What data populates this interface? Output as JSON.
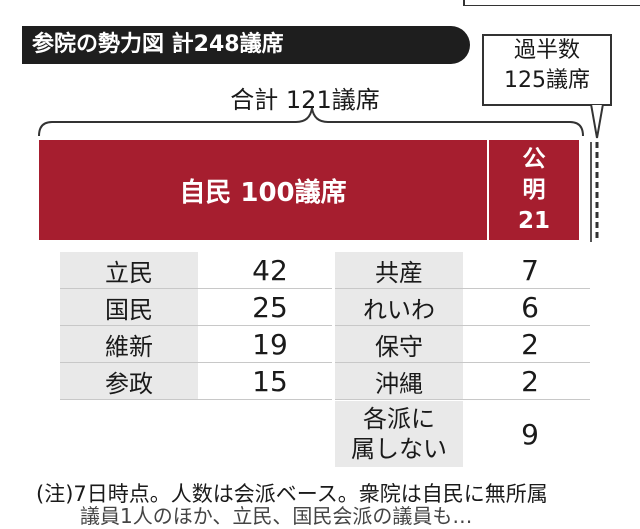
{
  "title": "参院の勢力図 計248議席",
  "majority": {
    "line1": "過半数",
    "line2": "125議席"
  },
  "coalition_total": "合計 121議席",
  "bars": [
    {
      "label": "自民 100議席",
      "value": 100
    },
    {
      "line1": "公",
      "line2": "明",
      "line3": "21",
      "value": 21
    }
  ],
  "chart_data": {
    "type": "bar",
    "title": "参院の勢力図 計248議席",
    "stacked": true,
    "total_seats": 248,
    "majority_threshold": 125,
    "coalition_total": 121,
    "coalition": [
      {
        "party": "自民",
        "seats": 100
      },
      {
        "party": "公明",
        "seats": 21
      }
    ],
    "others": [
      {
        "party": "立民",
        "seats": 42
      },
      {
        "party": "国民",
        "seats": 25
      },
      {
        "party": "維新",
        "seats": 19
      },
      {
        "party": "参政",
        "seats": 15
      },
      {
        "party": "共産",
        "seats": 7
      },
      {
        "party": "れいわ",
        "seats": 6
      },
      {
        "party": "保守",
        "seats": 2
      },
      {
        "party": "沖縄",
        "seats": 2
      },
      {
        "party": "各派に属しない",
        "seats": 9
      }
    ]
  },
  "table": {
    "left": [
      {
        "party": "立民",
        "seats": "42"
      },
      {
        "party": "国民",
        "seats": "25"
      },
      {
        "party": "維新",
        "seats": "19"
      },
      {
        "party": "参政",
        "seats": "15"
      }
    ],
    "right": [
      {
        "party": "共産",
        "seats": "7"
      },
      {
        "party": "れいわ",
        "seats": "6"
      },
      {
        "party": "保守",
        "seats": "2"
      },
      {
        "party": "沖縄",
        "seats": "2"
      }
    ],
    "unaffiliated": {
      "line1": "各派に",
      "line2": "属しない",
      "seats": "9"
    }
  },
  "note": "(注)7日時点。人数は会派ベース。衆院は自民に無所属",
  "note2": "議員1人のほか、立民、国民会派の議員も…"
}
